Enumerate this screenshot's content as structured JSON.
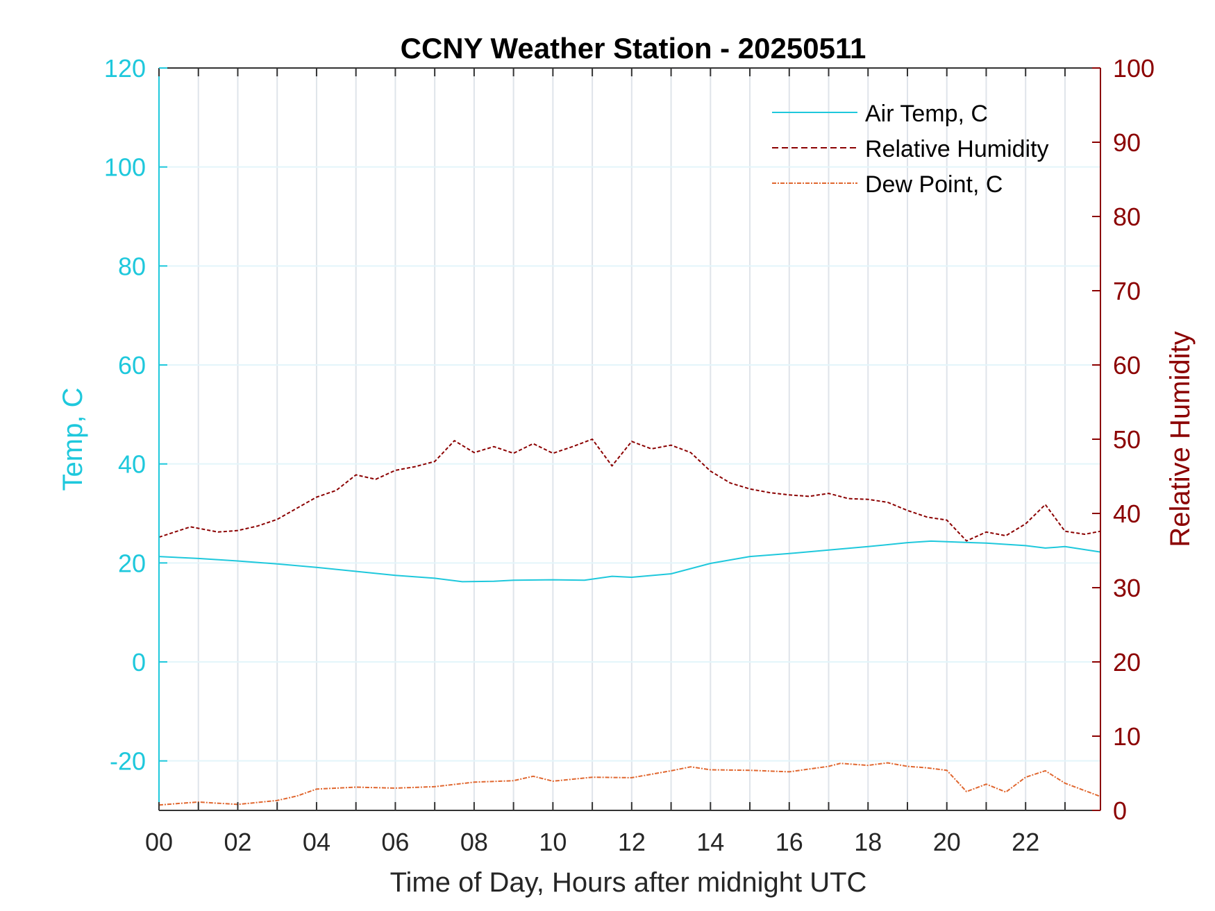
{
  "chart_data": {
    "type": "line",
    "title": "CCNY Weather Station - 20250511",
    "xlabel": "Time of Day, Hours after midnight UTC",
    "ylabel_left": "Temp, C",
    "ylabel_right": "Relative Humidity",
    "xlim": [
      0,
      23.9
    ],
    "ylim_left": [
      -30,
      120
    ],
    "ylim_right": [
      0,
      100
    ],
    "x_ticks": [
      0,
      2,
      4,
      6,
      8,
      10,
      12,
      14,
      16,
      18,
      20,
      22
    ],
    "x_tick_labels": [
      "00",
      "02",
      "04",
      "06",
      "08",
      "10",
      "12",
      "14",
      "16",
      "18",
      "20",
      "22"
    ],
    "y_left_ticks": [
      -20,
      0,
      20,
      40,
      60,
      80,
      100,
      120
    ],
    "y_left_tick_labels": [
      "-20",
      "0",
      "20",
      "40",
      "60",
      "80",
      "100",
      "120"
    ],
    "y_right_ticks": [
      0,
      10,
      20,
      30,
      40,
      50,
      60,
      70,
      80,
      90,
      100
    ],
    "y_right_tick_labels": [
      "0",
      "10",
      "20",
      "30",
      "40",
      "50",
      "60",
      "70",
      "80",
      "90",
      "100"
    ],
    "legend": [
      "Air Temp, C",
      "Relative Humidity",
      "Dew Point, C"
    ],
    "colors": {
      "temp": "#1ec8dc",
      "rh": "#8b0000",
      "dew": "#e0662e",
      "grid": "#dfe4ea",
      "axis": "#333333"
    },
    "series": [
      {
        "name": "Air Temp, C",
        "axis": "left",
        "x": [
          0,
          1,
          2,
          3,
          4,
          5,
          6,
          7,
          7.7,
          8.5,
          9,
          10,
          10.8,
          11.5,
          12,
          13,
          14,
          15,
          16,
          17,
          18,
          19,
          19.6,
          20.3,
          21,
          22,
          22.5,
          23,
          23.9
        ],
        "y": [
          21.3,
          20.9,
          20.4,
          19.8,
          19.1,
          18.3,
          17.5,
          16.9,
          16.2,
          16.3,
          16.5,
          16.6,
          16.5,
          17.3,
          17.1,
          17.8,
          19.9,
          21.3,
          21.9,
          22.6,
          23.3,
          24.1,
          24.4,
          24.2,
          24.0,
          23.5,
          23.0,
          23.3,
          22.2
        ]
      },
      {
        "name": "Relative Humidity",
        "axis": "right",
        "x": [
          0,
          0.8,
          1.5,
          2,
          2.5,
          3,
          3.5,
          4,
          4.5,
          5,
          5.5,
          6,
          6.5,
          7,
          7.5,
          8,
          8.5,
          9,
          9.5,
          10,
          10.5,
          11,
          11.5,
          12,
          12.5,
          13,
          13.5,
          14,
          14.5,
          15,
          15.5,
          16,
          16.5,
          17,
          17.5,
          18,
          18.5,
          19,
          19.5,
          20,
          20.5,
          21,
          21.5,
          22,
          22.5,
          23,
          23.5,
          23.9
        ],
        "y": [
          36.8,
          38.2,
          37.5,
          37.7,
          38.3,
          39.2,
          40.7,
          42.2,
          43.1,
          45.2,
          44.6,
          45.8,
          46.3,
          47.0,
          49.8,
          48.2,
          49.0,
          48.1,
          49.4,
          48.1,
          49.0,
          50.0,
          46.4,
          49.7,
          48.7,
          49.2,
          48.2,
          45.7,
          44.1,
          43.3,
          42.8,
          42.5,
          42.3,
          42.7,
          42.0,
          41.9,
          41.5,
          40.4,
          39.5,
          39.1,
          36.3,
          37.5,
          37.0,
          38.6,
          41.2,
          37.6,
          37.2,
          37.6
        ]
      },
      {
        "name": "Dew Point, C",
        "axis": "left",
        "x": [
          0,
          1,
          2,
          3,
          3.5,
          4,
          5,
          6,
          7,
          8,
          9,
          9.5,
          10,
          11,
          12,
          13,
          13.5,
          14,
          15,
          16,
          17,
          17.3,
          18,
          18.5,
          19,
          19.5,
          20,
          20.5,
          21,
          21.5,
          22,
          22.5,
          23,
          23.9
        ],
        "y": [
          -28.9,
          -28.3,
          -28.8,
          -28.0,
          -27.1,
          -25.7,
          -25.3,
          -25.5,
          -25.2,
          -24.3,
          -24.0,
          -23.1,
          -24.1,
          -23.3,
          -23.4,
          -22.0,
          -21.2,
          -21.8,
          -21.9,
          -22.2,
          -21.1,
          -20.5,
          -20.9,
          -20.4,
          -21.1,
          -21.4,
          -21.9,
          -26.2,
          -24.7,
          -26.3,
          -23.3,
          -22.0,
          -24.5,
          -27.2
        ]
      }
    ]
  }
}
